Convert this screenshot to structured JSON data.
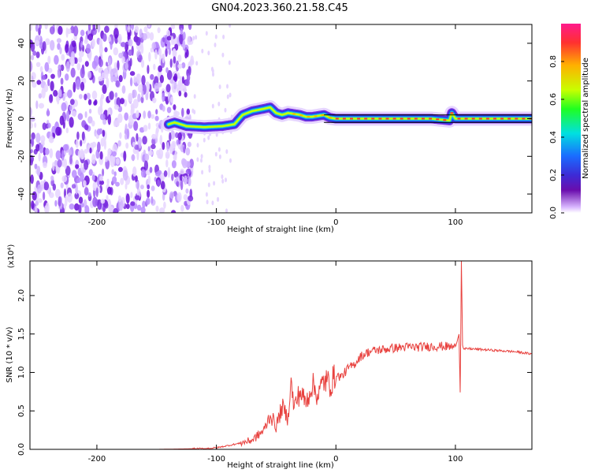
{
  "title": "GN04.2023.360.21.58.C45",
  "colors": {
    "snr_line": "#e8423f",
    "band_line": "#000000",
    "colorbar_stops": [
      "#ffffff",
      "#6a0dad",
      "#3d2bd6",
      "#1a6cff",
      "#00e0e0",
      "#20ff20",
      "#c8ff00",
      "#ffb000",
      "#ff3030",
      "#ff1a8c"
    ]
  },
  "chart_data": [
    {
      "type": "heatmap",
      "title": "GN04.2023.360.21.58.C45",
      "xlabel": "Height of straight line (km)",
      "ylabel": "Frequency (Hz)",
      "xlim": [
        -256,
        164
      ],
      "ylim": [
        -50,
        50
      ],
      "xticks": [
        -200,
        -100,
        0,
        100
      ],
      "yticks": [
        -40,
        -20,
        0,
        20,
        40
      ],
      "noise_region_x": [
        -256,
        -120
      ],
      "ridge": {
        "x": [
          -140,
          -135,
          -125,
          -110,
          -95,
          -85,
          -78,
          -70,
          -62,
          -55,
          -50,
          -45,
          -40,
          -35,
          -30,
          -25,
          -20,
          -15,
          -10,
          -5,
          0,
          20,
          40,
          60,
          80,
          95,
          97,
          100,
          120,
          140,
          164
        ],
        "y": [
          -3,
          -2,
          -4,
          -4.5,
          -4,
          -3,
          2,
          4,
          5,
          6,
          3,
          2,
          3,
          2.5,
          2,
          1,
          1,
          1.5,
          2,
          0.5,
          0,
          0,
          0,
          0,
          0,
          -1,
          3,
          0,
          0,
          0,
          0
        ]
      },
      "band_lines_y": [
        -2,
        2
      ],
      "band_lines_x": [
        -10,
        164
      ],
      "colorbar": {
        "label": "Normalized spectral amplitude",
        "range": [
          0,
          1
        ],
        "ticks": [
          0.0,
          0.2,
          0.4,
          0.6,
          0.8
        ]
      }
    },
    {
      "type": "line",
      "xlabel": "Height of straight line (km)",
      "ylabel": "SNR (10 * v/v)",
      "yscale_label": "(x10⁴)",
      "xlim": [
        -256,
        164
      ],
      "ylim": [
        0,
        2.45
      ],
      "xticks": [
        -200,
        -100,
        0,
        100
      ],
      "yticks": [
        0.0,
        0.5,
        1.0,
        1.5,
        2.0
      ],
      "series": [
        {
          "x": [
            -256,
            -150,
            -110,
            -100,
            -90,
            -80,
            -70,
            -60,
            -55,
            -50,
            -45,
            -40,
            -38,
            -35,
            -30,
            -25,
            -20,
            -15,
            -10,
            -5,
            0,
            5,
            10,
            15,
            20,
            25,
            30,
            40,
            50,
            60,
            70,
            80,
            90,
            100,
            103,
            104,
            105,
            106,
            107,
            110,
            120,
            130,
            140,
            150,
            164
          ],
          "y": [
            0.0,
            0.0,
            0.01,
            0.02,
            0.05,
            0.08,
            0.12,
            0.25,
            0.45,
            0.3,
            0.55,
            0.4,
            0.9,
            0.55,
            0.75,
            0.6,
            0.85,
            0.7,
            0.9,
            0.85,
            0.95,
            0.95,
            1.05,
            1.1,
            1.2,
            1.25,
            1.28,
            1.3,
            1.32,
            1.33,
            1.33,
            1.34,
            1.34,
            1.33,
            1.5,
            0.75,
            2.45,
            1.35,
            1.3,
            1.31,
            1.3,
            1.29,
            1.28,
            1.27,
            1.24
          ]
        }
      ]
    }
  ]
}
